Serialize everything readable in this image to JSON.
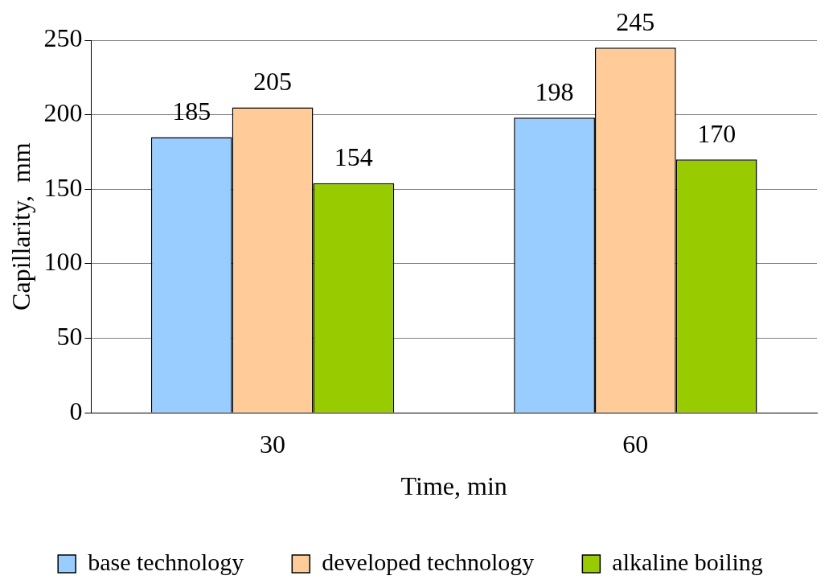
{
  "chart_data": {
    "type": "bar",
    "xlabel": "Time, min",
    "ylabel": "Capillarity,  mm",
    "categories": [
      "30",
      "60"
    ],
    "series": [
      {
        "name": "base technology",
        "color": "#99ccff",
        "values": [
          185,
          198
        ]
      },
      {
        "name": "developed technology",
        "color": "#ffcc99",
        "values": [
          205,
          245
        ]
      },
      {
        "name": "alkaline boiling",
        "color": "#99cc00",
        "values": [
          154,
          170
        ]
      }
    ],
    "ylim": [
      0,
      250
    ],
    "yticks": [
      0,
      50,
      100,
      150,
      200,
      250
    ],
    "grid": "y",
    "legend": "bottom",
    "data_labels": true
  }
}
